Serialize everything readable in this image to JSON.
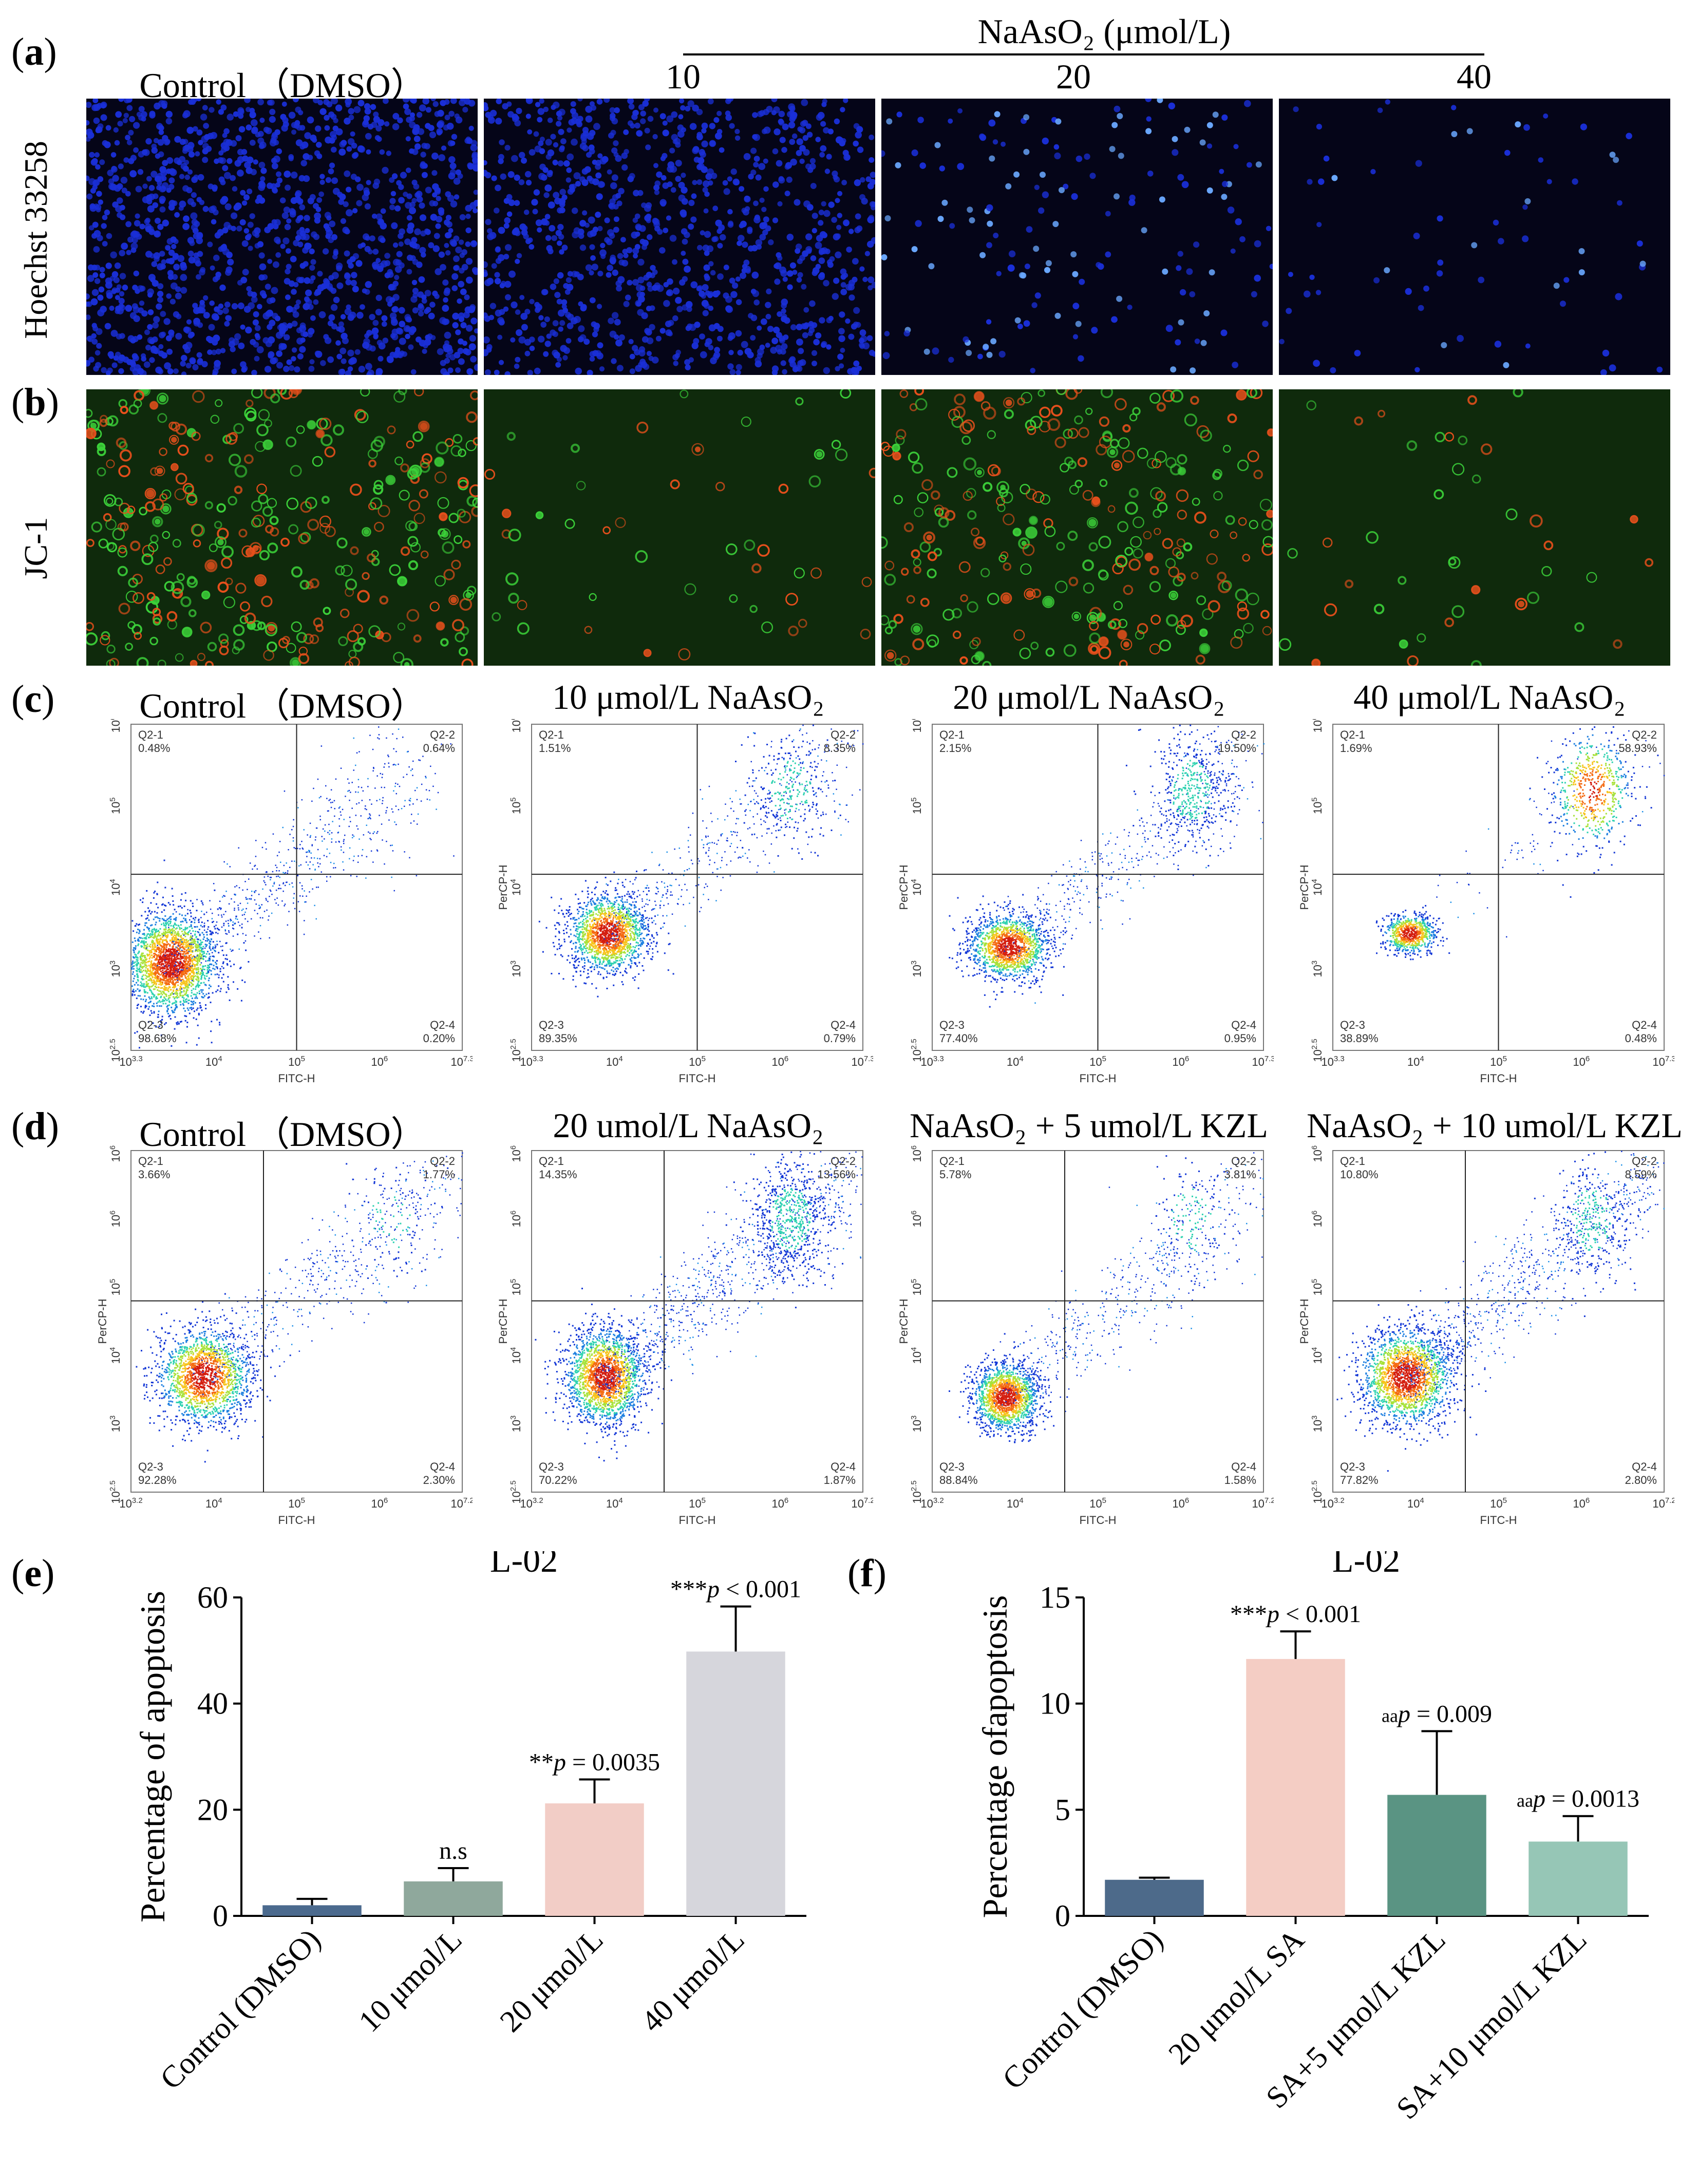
{
  "panel_letters": {
    "a": "a",
    "b": "b",
    "c": "c",
    "d": "d",
    "e": "e",
    "f": "f"
  },
  "row_ab": {
    "treatment_header": "NaAsO₂ (μmol/L)",
    "columns": [
      "Control （DMSO）",
      "10",
      "20",
      "40"
    ],
    "row_labels": [
      "Hoechst 33258",
      "JC-1"
    ],
    "colors": {
      "hoechst_bg": "#050518",
      "hoechst_cell": "#1a2fd8",
      "hoechst_bright": "#6aa8ff",
      "jc1_bg": "#0f2a0c",
      "jc1_green": "#3cd23a",
      "jc1_red": "#e8501c"
    },
    "hoechst_density": [
      1.0,
      0.75,
      0.12,
      0.05
    ],
    "jc1_density": [
      0.85,
      0.12,
      0.7,
      0.1
    ]
  },
  "row_c": {
    "titles": [
      "Control （DMSO）",
      "10 μmol/L NaAsO₂",
      "20 μmol/L NaAsO₂",
      "40 μmol/L NaAsO₂"
    ],
    "x_axis_label": "FITC-H",
    "y_axis_label": "PerCP-H",
    "x_ticks": [
      "10^3.3",
      "10^4",
      "10^5",
      "10^6",
      "10^7.3"
    ],
    "y_ticks": [
      "10^2.5",
      "10^3",
      "10^4",
      "10^5",
      "10^6"
    ],
    "quadrants": [
      {
        "q1": "Q2-1",
        "q1v": "0.48%",
        "q2": "Q2-2",
        "q2v": "0.64%",
        "q3": "Q2-3",
        "q3v": "98.68%",
        "q4": "Q2-4",
        "q4v": "0.20%"
      },
      {
        "q1": "Q2-1",
        "q1v": "1.51%",
        "q2": "Q2-2",
        "q2v": "8.35%",
        "q3": "Q2-3",
        "q3v": "89.35%",
        "q4": "Q2-4",
        "q4v": "0.79%"
      },
      {
        "q1": "Q2-1",
        "q1v": "2.15%",
        "q2": "Q2-2",
        "q2v": "19.50%",
        "q3": "Q2-3",
        "q3v": "77.40%",
        "q4": "Q2-4",
        "q4v": "0.95%"
      },
      {
        "q1": "Q2-1",
        "q1v": "1.69%",
        "q2": "Q2-2",
        "q2v": "58.93%",
        "q3": "Q2-3",
        "q3v": "38.89%",
        "q4": "Q2-4",
        "q4v": "0.48%"
      }
    ]
  },
  "row_d": {
    "titles": [
      "Control （DMSO）",
      "20 umol/L NaAsO₂",
      "NaAsO₂ + 5 umol/L KZL",
      "NaAsO₂ + 10 umol/L KZL"
    ],
    "x_axis_label": "FITC-H",
    "y_axis_label": "PerCP-H",
    "x_ticks": [
      "10^3.2",
      "10^4",
      "10^5",
      "10^6",
      "10^7.2"
    ],
    "y_ticks": [
      "10^2.5",
      "10^3",
      "10^4",
      "10^5",
      "10^6",
      "10^6.5"
    ],
    "quadrants": [
      {
        "q1": "Q2-1",
        "q1v": "3.66%",
        "q2": "Q2-2",
        "q2v": "1.77%",
        "q3": "Q2-3",
        "q3v": "92.28%",
        "q4": "Q2-4",
        "q4v": "2.30%"
      },
      {
        "q1": "Q2-1",
        "q1v": "14.35%",
        "q2": "Q2-2",
        "q2v": "13.56%",
        "q3": "Q2-3",
        "q3v": "70.22%",
        "q4": "Q2-4",
        "q4v": "1.87%"
      },
      {
        "q1": "Q2-1",
        "q1v": "5.78%",
        "q2": "Q2-2",
        "q2v": "3.81%",
        "q3": "Q2-3",
        "q3v": "88.84%",
        "q4": "Q2-4",
        "q4v": "1.58%"
      },
      {
        "q1": "Q2-1",
        "q1v": "10.80%",
        "q2": "Q2-2",
        "q2v": "8.59%",
        "q3": "Q2-3",
        "q3v": "77.82%",
        "q4": "Q2-4",
        "q4v": "2.80%"
      }
    ]
  },
  "chart_data": [
    {
      "type": "bar",
      "title": "L-02",
      "xlabel": "",
      "ylabel": "Percentage of apoptosis",
      "ylim": [
        0,
        60
      ],
      "yticks": [
        0,
        20,
        40,
        60
      ],
      "categories": [
        "Control (DMSO)",
        "10 μmol/L",
        "20 μmol/L",
        "40 μmol/L"
      ],
      "values": [
        2.0,
        6.5,
        21.2,
        49.8
      ],
      "errors": [
        1.2,
        2.5,
        4.5,
        8.5
      ],
      "colors": [
        "#4b6a8e",
        "#8fa89c",
        "#f2cdc6",
        "#d6d6dc"
      ],
      "annotations": [
        {
          "index": 1,
          "prefix": "",
          "text": "n.s"
        },
        {
          "index": 2,
          "prefix": "**",
          "text": "p = 0.0035"
        },
        {
          "index": 3,
          "prefix": "***",
          "text": "p < 0.001"
        }
      ]
    },
    {
      "type": "bar",
      "title": "L-02",
      "xlabel": "",
      "ylabel": "Percentage ofapoptosis",
      "ylim": [
        0,
        15
      ],
      "yticks": [
        0,
        5,
        10,
        15
      ],
      "categories": [
        "Control (DMSO)",
        "20 μmol/L SA",
        "SA+5 μmol/L KZL",
        "SA+10 μmol/L KZL"
      ],
      "values": [
        1.7,
        12.1,
        5.7,
        3.5
      ],
      "errors": [
        0.1,
        1.3,
        3.0,
        1.2
      ],
      "colors": [
        "#4d6a8a",
        "#f4cdc4",
        "#5a9483",
        "#96c6b6"
      ],
      "annotations": [
        {
          "index": 1,
          "prefix": "***",
          "text": "p < 0.001"
        },
        {
          "index": 2,
          "prefix": "aa",
          "text": "p = 0.009"
        },
        {
          "index": 3,
          "prefix": "aa",
          "text": "p = 0.0013"
        }
      ]
    }
  ]
}
